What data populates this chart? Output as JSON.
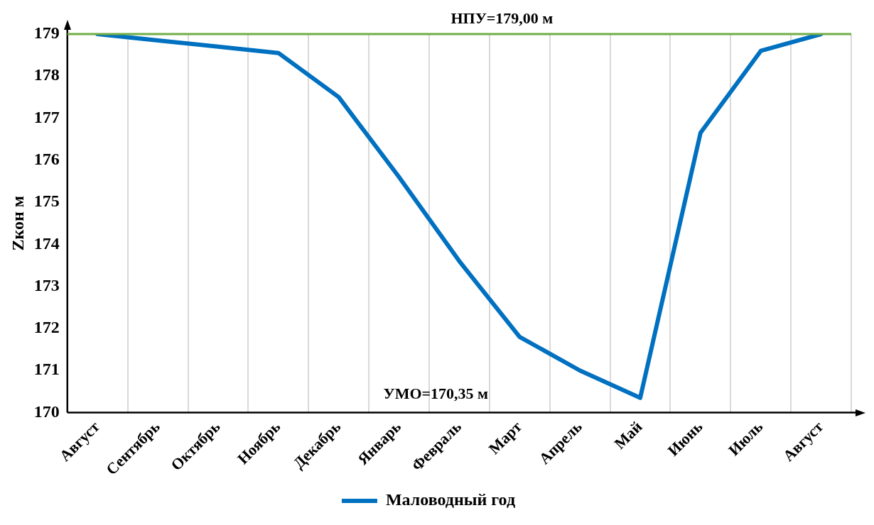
{
  "chart_data": {
    "type": "line",
    "ylabel": "Zкон м",
    "categories": [
      "Август",
      "Сентябрь",
      "Октябрь",
      "Ноябрь",
      "Декабрь",
      "Январь",
      "Февраль",
      "Март",
      "Апрель",
      "Май",
      "Июнь",
      "Июль",
      "Август"
    ],
    "series": [
      {
        "name": "Маловодный год",
        "color": "#0070c0",
        "values": [
          179.0,
          178.85,
          178.7,
          178.55,
          177.5,
          175.6,
          173.6,
          171.8,
          171.0,
          170.35,
          176.65,
          178.6,
          179.0
        ]
      }
    ],
    "ylim": [
      170,
      179
    ],
    "yticks": [
      170,
      171,
      172,
      173,
      174,
      175,
      176,
      177,
      178,
      179
    ],
    "ref_lines": [
      {
        "axis": "y",
        "value": 179,
        "label": "НПУ=179,00 м",
        "color": "#70ad47"
      }
    ],
    "annotations": [
      "УМО=170,35 м"
    ],
    "grid": "x",
    "legend": "bottom",
    "marker": "none",
    "line_style": "solid"
  }
}
